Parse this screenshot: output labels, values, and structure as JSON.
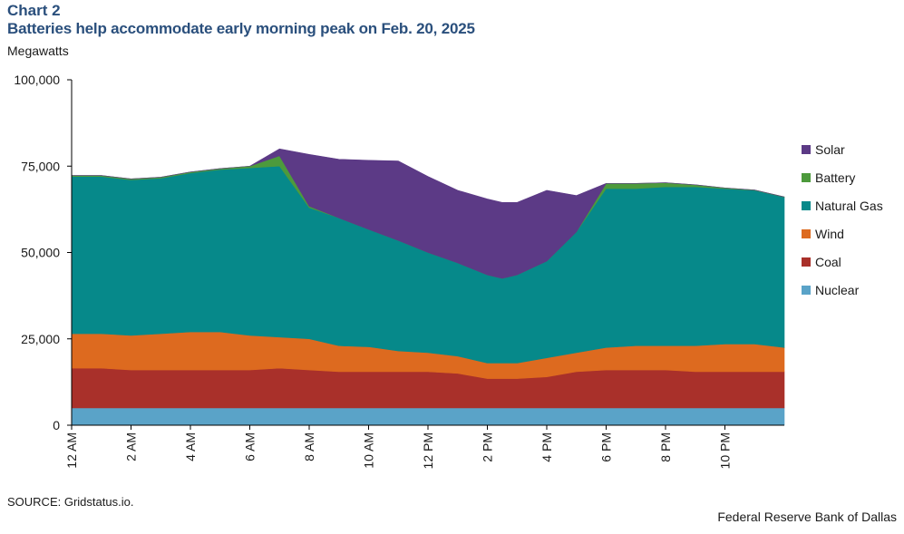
{
  "header": {
    "chart_number": "Chart 2",
    "title": "Batteries help accommodate early morning peak on Feb. 20, 2025",
    "unit": "Megawatts"
  },
  "footer": {
    "source": "SOURCE: Gridstatus.io.",
    "credit": "Federal Reserve Bank of Dallas"
  },
  "chart_data": {
    "type": "area",
    "stacked": true,
    "title": "Batteries help accommodate early morning peak on Feb. 20, 2025",
    "ylabel": "Megawatts",
    "ylim": [
      0,
      100000
    ],
    "yticks": [
      0,
      25000,
      50000,
      75000,
      100000
    ],
    "ytick_labels": [
      "0",
      "25,000",
      "50,000",
      "75,000",
      "100,000"
    ],
    "xlim": [
      0,
      24
    ],
    "xticks": [
      0,
      2,
      4,
      6,
      8,
      10,
      12,
      14,
      16,
      18,
      20,
      22
    ],
    "xtick_labels": [
      "12 AM",
      "2 AM",
      "4 AM",
      "6 AM",
      "8 AM",
      "10 AM",
      "12 PM",
      "2 PM",
      "4 PM",
      "6 PM",
      "8 PM",
      "10 PM"
    ],
    "grid": false,
    "legend_position": "right",
    "hours": [
      0,
      1,
      2,
      3,
      4,
      5,
      6,
      7,
      8,
      9,
      10,
      11,
      12,
      13,
      14,
      14.5,
      15,
      16,
      17,
      18,
      19,
      20,
      21,
      22,
      23,
      24
    ],
    "series": [
      {
        "name": "Nuclear",
        "color": "#5aa3c8",
        "values": [
          5000,
          5000,
          5000,
          5000,
          5000,
          5000,
          5000,
          5000,
          5000,
          5000,
          5000,
          5000,
          5000,
          5000,
          5000,
          5000,
          5000,
          5000,
          5000,
          5000,
          5000,
          5000,
          5000,
          5000,
          5000,
          5000
        ]
      },
      {
        "name": "Coal",
        "color": "#a9302a",
        "values": [
          11500,
          11500,
          11000,
          11000,
          11000,
          11000,
          11000,
          11500,
          11000,
          10500,
          10500,
          10500,
          10500,
          10000,
          8500,
          8500,
          8500,
          9000,
          10500,
          11000,
          11000,
          11000,
          10500,
          10500,
          10500,
          10500
        ]
      },
      {
        "name": "Wind",
        "color": "#dd6a1f",
        "values": [
          10000,
          10000,
          10000,
          10500,
          11000,
          11000,
          10000,
          9000,
          9000,
          7500,
          7200,
          6000,
          5500,
          5000,
          4500,
          4500,
          4500,
          5500,
          5500,
          6500,
          7000,
          7000,
          7500,
          8000,
          8000,
          7000
        ]
      },
      {
        "name": "Natural Gas",
        "color": "#06898a",
        "values": [
          45500,
          45500,
          45000,
          45000,
          46000,
          47000,
          48500,
          49500,
          38000,
          37000,
          34000,
          32000,
          29000,
          27000,
          25500,
          24500,
          25500,
          28000,
          35000,
          46000,
          45500,
          46000,
          46000,
          45000,
          44500,
          43500
        ]
      },
      {
        "name": "Battery",
        "color": "#4d9a3c",
        "values": [
          300,
          300,
          300,
          300,
          300,
          300,
          500,
          3000,
          400,
          0,
          0,
          0,
          0,
          0,
          0,
          0,
          0,
          0,
          0,
          1500,
          1500,
          1200,
          600,
          200,
          100,
          100
        ]
      },
      {
        "name": "Solar",
        "color": "#5c3a86",
        "values": [
          0,
          0,
          0,
          0,
          0,
          0,
          0,
          2000,
          15000,
          17000,
          20000,
          23000,
          22000,
          21000,
          22000,
          22000,
          21000,
          20500,
          10500,
          0,
          0,
          0,
          0,
          0,
          0,
          0
        ]
      }
    ]
  }
}
